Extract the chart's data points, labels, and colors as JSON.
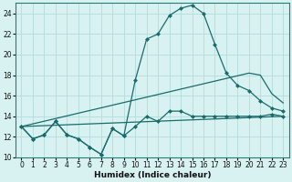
{
  "xlabel": "Humidex (Indice chaleur)",
  "bg_color": "#d8f2f2",
  "grid_color": "#b8dede",
  "line_color": "#1a6b6b",
  "xlim": [
    -0.5,
    23.5
  ],
  "ylim": [
    10,
    25
  ],
  "xticks": [
    0,
    1,
    2,
    3,
    4,
    5,
    6,
    7,
    8,
    9,
    10,
    11,
    12,
    13,
    14,
    15,
    16,
    17,
    18,
    19,
    20,
    21,
    22,
    23
  ],
  "yticks": [
    10,
    12,
    14,
    16,
    18,
    20,
    22,
    24
  ],
  "line1_x": [
    0,
    1,
    2,
    3,
    4,
    5,
    6,
    7,
    8,
    9,
    10,
    11,
    12,
    13,
    14,
    15,
    16,
    17,
    18,
    19,
    20,
    21,
    22,
    23
  ],
  "line1_y": [
    13,
    11.8,
    12.2,
    13.5,
    12.2,
    11.8,
    11.0,
    10.3,
    12.8,
    12.1,
    17.5,
    21.5,
    22.0,
    23.8,
    24.5,
    24.8,
    24.0,
    21.0,
    18.2,
    17.0,
    16.5,
    15.5,
    14.8,
    14.5
  ],
  "line2_x": [
    0,
    1,
    2,
    3,
    4,
    5,
    6,
    7,
    8,
    9,
    10,
    11,
    12,
    13,
    14,
    15,
    16,
    17,
    18,
    19,
    20,
    21,
    22,
    23
  ],
  "line2_y": [
    13,
    11.8,
    12.2,
    13.5,
    12.2,
    11.8,
    11.0,
    10.3,
    12.8,
    12.1,
    13.0,
    14.0,
    13.5,
    14.5,
    14.5,
    14.0,
    14.0,
    14.0,
    14.0,
    14.0,
    14.0,
    14.0,
    14.2,
    14.0
  ],
  "line3_x": [
    0,
    23
  ],
  "line3_y": [
    13,
    14.0
  ],
  "line4_x": [
    0,
    20,
    21,
    22,
    23
  ],
  "line4_y": [
    13,
    18.2,
    18.0,
    16.2,
    15.3
  ]
}
